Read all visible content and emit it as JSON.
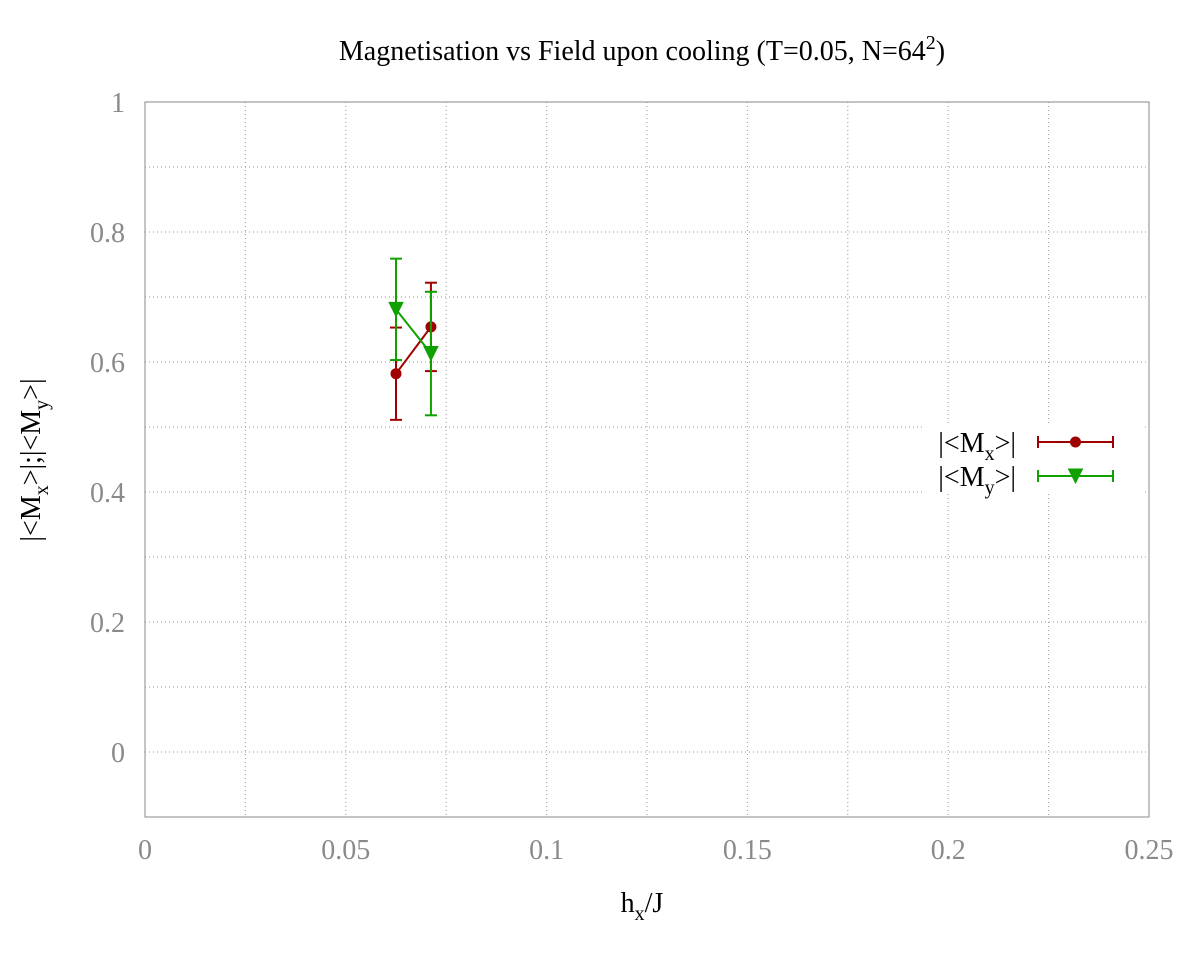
{
  "chart_data": {
    "type": "scatter",
    "title": {
      "main": "Magnetisation vs Field upon cooling (T=0.05, N=64",
      "sup": "2",
      "end": ")"
    },
    "xlabel": {
      "main": "h",
      "sub": "x",
      "end": "/J"
    },
    "ylabel": {
      "p1": "|<M",
      "s1": "x",
      "p2": ">|;|<M",
      "s2": "y",
      "p3": ">|"
    },
    "xlim": [
      0,
      0.25
    ],
    "ylim": [
      -0.1,
      1.0
    ],
    "x_ticks": [
      0,
      0.05,
      0.1,
      0.15,
      0.2,
      0.25
    ],
    "x_tick_labels": [
      "0",
      "0.05",
      "0.1",
      "0.15",
      "0.2",
      "0.25"
    ],
    "y_ticks": [
      0,
      0.2,
      0.4,
      0.6,
      0.8,
      1
    ],
    "y_tick_labels": [
      "0",
      "0.2",
      "0.4",
      "0.6",
      "0.8",
      "1"
    ],
    "grid": true,
    "legend_position": "right",
    "series": [
      {
        "name": {
          "p": "|<M",
          "s": "x",
          "e": ">|"
        },
        "color": "#a00000",
        "marker": "circle",
        "x": [
          0.0625,
          0.0712
        ],
        "y": [
          0.582,
          0.654
        ],
        "yerr": [
          0.071,
          0.068
        ]
      },
      {
        "name": {
          "p": "|<M",
          "s": "y",
          "e": ">|"
        },
        "color": "#10a000",
        "marker": "triangle-down",
        "x": [
          0.0625,
          0.0712
        ],
        "y": [
          0.681,
          0.613
        ],
        "yerr": [
          0.078,
          0.095
        ]
      }
    ]
  }
}
